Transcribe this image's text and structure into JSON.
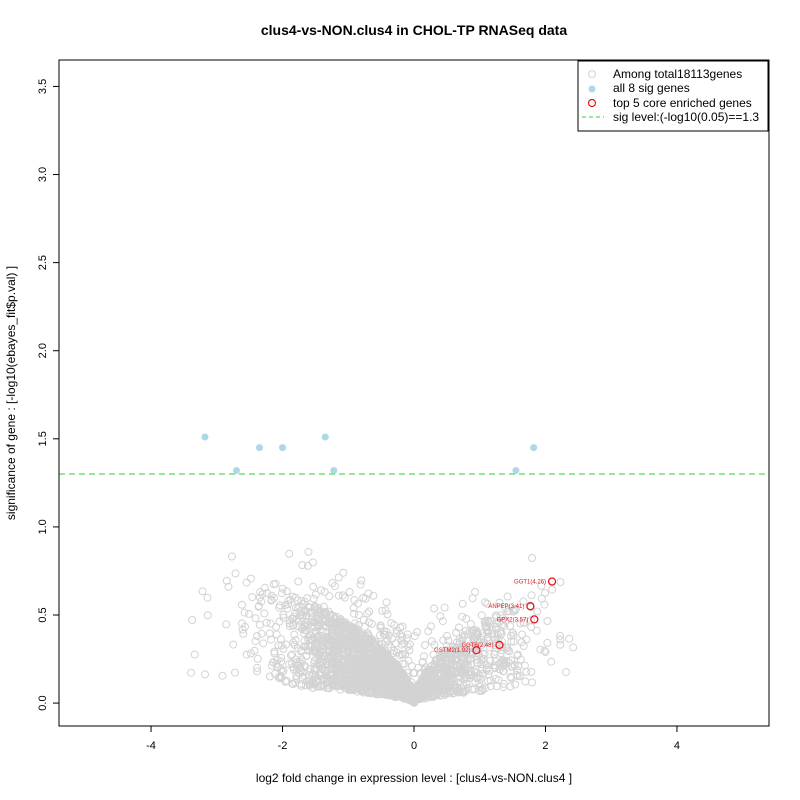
{
  "chart_data": {
    "type": "scatter",
    "title": "clus4-vs-NON.clus4 in CHOL-TP RNASeq data",
    "xlabel": "log2 fold change in expression level : [clus4-vs-NON.clus4 ]",
    "ylabel": "significance of gene : [-log10(ebayes_fit$p.val) ]",
    "xlim": [
      -5.4,
      5.4
    ],
    "ylim": [
      -0.13,
      3.65
    ],
    "x_ticks": [
      -4,
      -2,
      0,
      2,
      4
    ],
    "y_ticks": [
      0.0,
      0.5,
      1.0,
      1.5,
      2.0,
      2.5,
      3.0,
      3.5
    ],
    "x_tick_labels": [
      "-4",
      "-2",
      "0",
      "2",
      "4"
    ],
    "y_tick_labels": [
      "0.0",
      "0.5",
      "1.0",
      "1.5",
      "2.0",
      "2.5",
      "3.0",
      "3.5"
    ],
    "sig_level": 1.3,
    "colors": {
      "background_genes": "#d3d3d3",
      "sig_genes": "#add8e6",
      "core_genes": "#e8151b",
      "sig_line": "#33cc33"
    },
    "legend": {
      "position": "top-right",
      "entries": [
        "Among total18113genes",
        "all 8 sig genes",
        "top 5 core enriched genes",
        "sig level:(-log10(0.05)==1.3"
      ]
    },
    "sig_genes": [
      {
        "x": -3.18,
        "y": 1.51
      },
      {
        "x": -2.35,
        "y": 1.45
      },
      {
        "x": -2.0,
        "y": 1.45
      },
      {
        "x": -1.35,
        "y": 1.51
      },
      {
        "x": -1.22,
        "y": 1.32
      },
      {
        "x": -2.7,
        "y": 1.32
      },
      {
        "x": 1.55,
        "y": 1.32
      },
      {
        "x": 1.82,
        "y": 1.45
      }
    ],
    "core_genes": [
      {
        "label": "GGT1(4.26)",
        "x": 2.1,
        "y": 0.69
      },
      {
        "label": "ANPEP(3.41)",
        "x": 1.77,
        "y": 0.55
      },
      {
        "label": "GPX2(3.57)",
        "x": 1.83,
        "y": 0.475
      },
      {
        "label": "GGT6(2.48)",
        "x": 1.3,
        "y": 0.33
      },
      {
        "label": "GSTM2(1.92)",
        "x": 0.95,
        "y": 0.3
      }
    ],
    "background_genes_note": "18113 genes forming a volcano-shaped cloud"
  }
}
